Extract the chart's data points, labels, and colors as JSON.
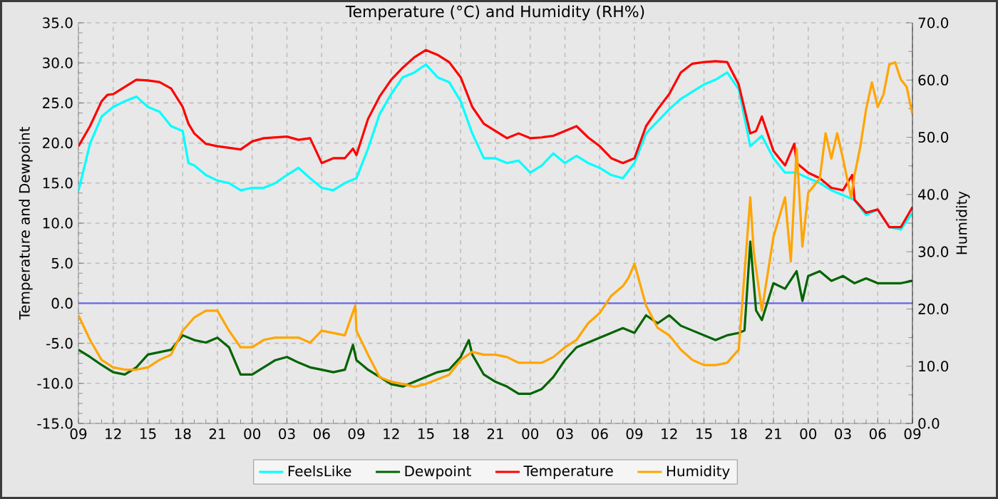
{
  "chart_data": {
    "type": "line",
    "title": "Temperature (°C) and Humidity (RH%)",
    "ylabel": "Temperature and Dewpoint",
    "y2label": "Humidity",
    "xlim": [
      9,
      81
    ],
    "xticks": [
      {
        "value": 9,
        "label": "09"
      },
      {
        "value": 12,
        "label": "12"
      },
      {
        "value": 15,
        "label": "15"
      },
      {
        "value": 18,
        "label": "18"
      },
      {
        "value": 21,
        "label": "21"
      },
      {
        "value": 24,
        "label": "00"
      },
      {
        "value": 27,
        "label": "03"
      },
      {
        "value": 30,
        "label": "06"
      },
      {
        "value": 33,
        "label": "09"
      },
      {
        "value": 36,
        "label": "12"
      },
      {
        "value": 39,
        "label": "15"
      },
      {
        "value": 42,
        "label": "18"
      },
      {
        "value": 45,
        "label": "21"
      },
      {
        "value": 48,
        "label": "00"
      },
      {
        "value": 51,
        "label": "03"
      },
      {
        "value": 54,
        "label": "06"
      },
      {
        "value": 57,
        "label": "09"
      },
      {
        "value": 60,
        "label": "12"
      },
      {
        "value": 63,
        "label": "15"
      },
      {
        "value": 66,
        "label": "18"
      },
      {
        "value": 69,
        "label": "21"
      },
      {
        "value": 72,
        "label": "00"
      },
      {
        "value": 75,
        "label": "03"
      },
      {
        "value": 78,
        "label": "06"
      },
      {
        "value": 81,
        "label": "09"
      }
    ],
    "ylim": [
      -15,
      35
    ],
    "yticks": [
      {
        "value": -15,
        "label": "-15.0"
      },
      {
        "value": -10,
        "label": "-10.0"
      },
      {
        "value": -5,
        "label": "-5.0"
      },
      {
        "value": 0,
        "label": "0.0"
      },
      {
        "value": 5,
        "label": "5.0"
      },
      {
        "value": 10,
        "label": "10.0"
      },
      {
        "value": 15,
        "label": "15.0"
      },
      {
        "value": 20,
        "label": "20.0"
      },
      {
        "value": 25,
        "label": "25.0"
      },
      {
        "value": 30,
        "label": "30.0"
      },
      {
        "value": 35,
        "label": "35.0"
      }
    ],
    "y2lim": [
      0,
      70
    ],
    "y2ticks": [
      {
        "value": 0,
        "label": "0.0"
      },
      {
        "value": 10,
        "label": "10.0"
      },
      {
        "value": 20,
        "label": "20.0"
      },
      {
        "value": 30,
        "label": "30.0"
      },
      {
        "value": 40,
        "label": "40.0"
      },
      {
        "value": 50,
        "label": "50.0"
      },
      {
        "value": 60,
        "label": "60.0"
      },
      {
        "value": 70,
        "label": "70.0"
      }
    ],
    "grid": true,
    "legend": "bottom",
    "marker": "none",
    "ref_lines": [
      {
        "axis": "y",
        "value": 0,
        "color": "#6666ee"
      }
    ],
    "series": [
      {
        "name": "FeelsLike",
        "color": "#00ffff",
        "x": [
          9,
          10,
          11,
          12,
          13,
          14,
          15,
          16,
          17,
          18,
          18.5,
          19,
          20,
          21,
          22,
          23,
          24,
          25,
          26,
          27,
          28,
          29,
          30,
          31,
          32,
          33,
          34,
          35,
          36,
          37,
          38,
          39,
          40,
          41,
          42,
          43,
          44,
          45,
          46,
          47,
          48,
          49,
          50,
          51,
          52,
          53,
          54,
          55,
          56,
          57,
          58,
          59,
          60,
          61,
          62,
          63,
          64,
          65,
          66,
          67,
          68,
          69,
          70,
          71,
          72,
          73,
          74,
          75,
          76,
          77,
          78,
          79,
          80,
          81
        ],
        "values": [
          14,
          19.9,
          23.3,
          24.5,
          25.2,
          25.8,
          24.5,
          23.9,
          22.1,
          21.5,
          17.5,
          17.2,
          16.0,
          15.3,
          15.0,
          14.1,
          14.4,
          14.4,
          15.0,
          16.0,
          16.9,
          15.6,
          14.4,
          14.1,
          15.0,
          15.6,
          19.3,
          23.6,
          26.1,
          28.2,
          28.8,
          29.8,
          28.2,
          27.6,
          25.2,
          21.2,
          18.1,
          18.1,
          17.5,
          17.8,
          16.3,
          17.2,
          18.7,
          17.5,
          18.4,
          17.5,
          16.9,
          16.0,
          15.6,
          17.5,
          21.2,
          22.7,
          24.2,
          25.5,
          26.4,
          27.3,
          27.9,
          28.8,
          26.7,
          19.6,
          20.9,
          18.1,
          16.3,
          16.3,
          15.6,
          15.0,
          14.1,
          13.5,
          12.9,
          11.0,
          11.7,
          9.5,
          9.2,
          11.3
        ]
      },
      {
        "name": "Dewpoint",
        "color": "#006400",
        "x": [
          9,
          10,
          11,
          12,
          13,
          14,
          15,
          16,
          17,
          18,
          19,
          20,
          21,
          22,
          23,
          24,
          25,
          26,
          27,
          28,
          29,
          30,
          31,
          32,
          32.7,
          33,
          34,
          35,
          36,
          37,
          38,
          39,
          40,
          41,
          42,
          42.7,
          43,
          44,
          45,
          46,
          47,
          48,
          49,
          50,
          51,
          52,
          53,
          54,
          55,
          56,
          57,
          58,
          59,
          60,
          61,
          62,
          63,
          64,
          65,
          66,
          66.5,
          67,
          67.5,
          68,
          69,
          70,
          71,
          71.5,
          72,
          73,
          74,
          75,
          76,
          77,
          78,
          79,
          80,
          81
        ],
        "values": [
          -5.8,
          -6.7,
          -7.7,
          -8.6,
          -8.9,
          -8.0,
          -6.4,
          -6.1,
          -5.8,
          -4.0,
          -4.6,
          -4.9,
          -4.3,
          -5.5,
          -8.9,
          -8.9,
          -8.0,
          -7.1,
          -6.7,
          -7.4,
          -8.0,
          -8.3,
          -8.6,
          -8.3,
          -5.2,
          -7.1,
          -8.3,
          -9.2,
          -10.1,
          -10.4,
          -9.8,
          -9.2,
          -8.6,
          -8.3,
          -6.7,
          -4.6,
          -6.4,
          -8.9,
          -9.8,
          -10.4,
          -11.3,
          -11.3,
          -10.7,
          -9.2,
          -7.1,
          -5.5,
          -4.9,
          -4.3,
          -3.7,
          -3.1,
          -3.7,
          -1.5,
          -2.5,
          -1.5,
          -2.8,
          -3.4,
          -4.0,
          -4.6,
          -4.0,
          -3.7,
          -3.4,
          7.7,
          -0.9,
          -2.1,
          2.5,
          1.8,
          4.0,
          0.3,
          3.4,
          4.0,
          2.8,
          3.4,
          2.5,
          3.1,
          2.5,
          2.5,
          2.5,
          2.8
        ]
      },
      {
        "name": "Temperature",
        "color": "#ff0000",
        "x": [
          9,
          10,
          11,
          11.5,
          12,
          13,
          14,
          15,
          16,
          17,
          18,
          18.5,
          19,
          20,
          21,
          22,
          23,
          24,
          25,
          26,
          27,
          28,
          29,
          30,
          31,
          32,
          32.7,
          33,
          34,
          35,
          36,
          37,
          38,
          39,
          40,
          41,
          42,
          43,
          44,
          45,
          46,
          47,
          48,
          49,
          50,
          51,
          52,
          53,
          54,
          55,
          56,
          57,
          58,
          59,
          60,
          61,
          62,
          63,
          64,
          65,
          66,
          67,
          67.5,
          68,
          69,
          70,
          70.8,
          71,
          72,
          73,
          74,
          75,
          75.8,
          76,
          77,
          78,
          79,
          80,
          81
        ],
        "values": [
          19.6,
          22.1,
          25.2,
          26,
          26.1,
          27,
          27.9,
          27.8,
          27.6,
          26.8,
          24.5,
          22.4,
          21.2,
          19.9,
          19.6,
          19.4,
          19.2,
          20.2,
          20.6,
          20.7,
          20.8,
          20.4,
          20.6,
          17.5,
          18.1,
          18.1,
          19.3,
          18.5,
          23,
          25.8,
          27.9,
          29.4,
          30.7,
          31.6,
          31.0,
          30.1,
          28.2,
          24.5,
          22.4,
          21.5,
          20.6,
          21.2,
          20.6,
          20.7,
          20.9,
          21.5,
          22.1,
          20.7,
          19.6,
          18.1,
          17.5,
          18.1,
          22.1,
          24.2,
          26.1,
          28.8,
          29.9,
          30.1,
          30.2,
          30.1,
          27.3,
          21.2,
          21.5,
          23.3,
          19.0,
          17.2,
          19.9,
          17.5,
          16.3,
          15.6,
          14.4,
          14.1,
          16,
          12.9,
          11.3,
          11.7,
          9.5,
          9.5,
          12.0
        ]
      },
      {
        "name": "Humidity",
        "color": "#ffa500",
        "axis": "y2",
        "x": [
          9,
          10,
          11,
          12,
          13,
          14,
          15,
          16,
          17,
          18,
          19,
          20,
          21,
          22,
          23,
          24,
          25,
          26,
          27,
          28,
          29,
          30,
          31,
          32,
          32.9,
          33,
          34,
          35,
          36,
          37,
          38,
          39,
          40,
          41,
          42,
          43,
          44,
          45,
          46,
          47,
          48,
          49,
          50,
          51,
          52,
          53,
          54,
          55,
          56,
          56.5,
          57,
          58,
          59,
          60,
          61,
          62,
          63,
          64,
          65,
          66,
          67,
          67.3,
          68,
          69,
          70,
          70.5,
          71,
          71.5,
          72,
          73,
          73.5,
          74,
          74.5,
          75,
          75.7,
          76,
          76.5,
          77,
          77.5,
          78,
          78.5,
          79,
          79.5,
          80,
          80.5,
          81
        ],
        "values": [
          18.9,
          14.6,
          11.1,
          9.8,
          9.4,
          9.4,
          9.8,
          11.1,
          12.0,
          16.2,
          18.5,
          19.7,
          19.7,
          16.2,
          13.3,
          13.3,
          14.6,
          15.0,
          15.0,
          15.0,
          14.1,
          16.2,
          15.8,
          15.4,
          20.6,
          16.2,
          12.0,
          8.1,
          7.3,
          6.9,
          6.4,
          6.9,
          7.7,
          8.5,
          11.1,
          12.5,
          12.0,
          12.0,
          11.6,
          10.6,
          10.6,
          10.6,
          11.6,
          13.3,
          14.6,
          17.5,
          19.3,
          22.3,
          24.0,
          25.5,
          27.9,
          20.6,
          16.7,
          15.4,
          12.9,
          11.1,
          10.2,
          10.2,
          10.6,
          12.9,
          39.5,
          30.0,
          19.7,
          32.6,
          39.5,
          28.3,
          48.0,
          30.9,
          40.3,
          42.8,
          50.7,
          46.3,
          50.7,
          46.3,
          39.5,
          43.4,
          48.4,
          54.9,
          59.6,
          55.3,
          57.5,
          62.7,
          63.1,
          60.1,
          58.8,
          54.0
        ]
      }
    ]
  }
}
